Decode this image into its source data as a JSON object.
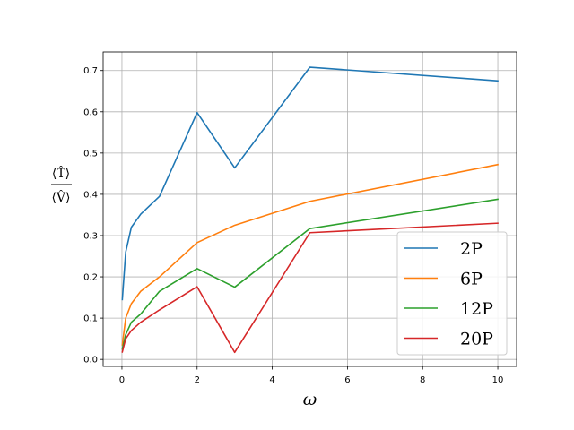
{
  "chart_data": {
    "type": "line",
    "title": "",
    "xlabel": "ω",
    "ylabel": {
      "numerator": "⟨T̂⟩",
      "denominator": "⟨V̂⟩"
    },
    "xlim": [
      -0.5,
      10.5
    ],
    "ylim": [
      -0.017,
      0.745
    ],
    "xticks": [
      0,
      2,
      4,
      6,
      8,
      10
    ],
    "xtick_labels": [
      "0",
      "2",
      "4",
      "6",
      "8",
      "10"
    ],
    "yticks": [
      0.0,
      0.1,
      0.2,
      0.3,
      0.4,
      0.5,
      0.6,
      0.7
    ],
    "ytick_labels": [
      "0.0",
      "0.1",
      "0.2",
      "0.3",
      "0.4",
      "0.5",
      "0.6",
      "0.7"
    ],
    "grid": true,
    "legend_position": "lower-right",
    "series": [
      {
        "name": "2P",
        "color": "#1f77b4",
        "x": [
          0.01,
          0.1,
          0.25,
          0.5,
          1,
          2,
          3,
          5,
          10
        ],
        "y": [
          0.145,
          0.26,
          0.32,
          0.352,
          0.395,
          0.598,
          0.464,
          0.708,
          0.675
        ]
      },
      {
        "name": "6P",
        "color": "#ff7f0e",
        "x": [
          0.01,
          0.1,
          0.25,
          0.5,
          1,
          2,
          3,
          5,
          10
        ],
        "y": [
          0.035,
          0.1,
          0.135,
          0.165,
          0.2,
          0.283,
          0.325,
          0.383,
          0.472
        ]
      },
      {
        "name": "12P",
        "color": "#2ca02c",
        "x": [
          0.01,
          0.1,
          0.25,
          0.5,
          1,
          2,
          3,
          5,
          10
        ],
        "y": [
          0.025,
          0.06,
          0.09,
          0.11,
          0.165,
          0.22,
          0.175,
          0.317,
          0.388
        ]
      },
      {
        "name": "20P",
        "color": "#d62728",
        "x": [
          0.01,
          0.1,
          0.25,
          0.5,
          1,
          2,
          3,
          5,
          10
        ],
        "y": [
          0.018,
          0.05,
          0.07,
          0.09,
          0.12,
          0.176,
          0.017,
          0.307,
          0.33
        ]
      }
    ]
  }
}
